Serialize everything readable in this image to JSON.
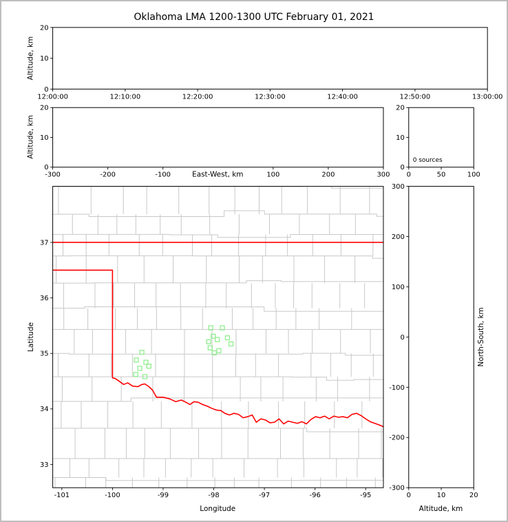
{
  "title": "Oklahoma LMA 1200-1300 UTC February 01, 2021",
  "colors": {
    "background": "#ffffff",
    "frame_border": "#bdbdbd",
    "axis": "#000000",
    "county_lines": "#c8c8c8",
    "state_boundary": "#ff0000",
    "station_marker": "#90ee90",
    "text": "#000000"
  },
  "chart_data": [
    {
      "id": "time_height",
      "type": "scatter",
      "ylabel": "Altitude, km",
      "ylim": [
        0,
        20
      ],
      "yticks": [
        0,
        10,
        20
      ],
      "xticks": [
        "12:00:00",
        "12:10:00",
        "12:20:00",
        "12:30:00",
        "12:40:00",
        "12:50:00",
        "13:00:00"
      ],
      "points": []
    },
    {
      "id": "eastwest_height",
      "type": "scatter",
      "xlabel": "East-West, km",
      "ylabel": "Altitude, km",
      "xlim": [
        -300,
        300
      ],
      "ylim": [
        0,
        20
      ],
      "xticks": [
        -300,
        -200,
        -100,
        100,
        200,
        300
      ],
      "yticks": [
        0,
        10,
        20
      ],
      "points": []
    },
    {
      "id": "altitude_histogram",
      "type": "line",
      "xlim": [
        0,
        100
      ],
      "ylim": [
        0,
        20
      ],
      "xticks": [
        0,
        50,
        100
      ],
      "yticks": [
        0,
        10,
        20
      ],
      "annotation": "0 sources",
      "points": []
    },
    {
      "id": "plan_view",
      "type": "scatter",
      "xlabel": "Longitude",
      "ylabel": "Latitude",
      "xlim": [
        -101.18,
        -94.65
      ],
      "ylim": [
        32.58,
        38.01
      ],
      "xticks": [
        -101,
        -100,
        -99,
        -98,
        -97,
        -96,
        -95
      ],
      "yticks": [
        33,
        34,
        35,
        36,
        37
      ],
      "stations": [
        [
          -98.06,
          35.46
        ],
        [
          -97.83,
          35.46
        ],
        [
          -98.01,
          35.31
        ],
        [
          -97.73,
          35.28
        ],
        [
          -98.1,
          35.21
        ],
        [
          -97.93,
          35.25
        ],
        [
          -98.07,
          35.1
        ],
        [
          -97.9,
          35.05
        ],
        [
          -97.99,
          35.01
        ],
        [
          -97.66,
          35.17
        ],
        [
          -99.42,
          35.02
        ],
        [
          -99.53,
          34.88
        ],
        [
          -99.34,
          34.84
        ],
        [
          -99.46,
          34.73
        ],
        [
          -99.28,
          34.77
        ],
        [
          -99.54,
          34.62
        ],
        [
          -99.36,
          34.58
        ]
      ],
      "state_boundary": {
        "segments": [
          [
            [
              -101.18,
              37.0
            ],
            [
              -94.65,
              37.0
            ]
          ],
          [
            [
              -101.18,
              36.5
            ],
            [
              -100.0,
              36.5
            ],
            [
              -100.0,
              34.56
            ],
            [
              -99.95,
              34.55
            ],
            [
              -99.87,
              34.5
            ],
            [
              -99.78,
              34.44
            ],
            [
              -99.7,
              34.47
            ],
            [
              -99.6,
              34.41
            ],
            [
              -99.5,
              34.4
            ],
            [
              -99.42,
              34.44
            ],
            [
              -99.36,
              34.45
            ],
            [
              -99.28,
              34.4
            ],
            [
              -99.21,
              34.34
            ],
            [
              -99.13,
              34.21
            ],
            [
              -99.0,
              34.21
            ],
            [
              -98.87,
              34.18
            ],
            [
              -98.75,
              34.13
            ],
            [
              -98.64,
              34.16
            ],
            [
              -98.55,
              34.12
            ],
            [
              -98.47,
              34.08
            ],
            [
              -98.39,
              34.13
            ],
            [
              -98.31,
              34.12
            ],
            [
              -98.22,
              34.08
            ],
            [
              -98.13,
              34.05
            ],
            [
              -98.04,
              34.01
            ],
            [
              -97.95,
              33.98
            ],
            [
              -97.86,
              33.97
            ],
            [
              -97.78,
              33.92
            ],
            [
              -97.69,
              33.89
            ],
            [
              -97.6,
              33.92
            ],
            [
              -97.51,
              33.9
            ],
            [
              -97.42,
              33.84
            ],
            [
              -97.33,
              33.86
            ],
            [
              -97.24,
              33.89
            ],
            [
              -97.16,
              33.76
            ],
            [
              -97.07,
              33.82
            ],
            [
              -96.98,
              33.8
            ],
            [
              -96.89,
              33.75
            ],
            [
              -96.8,
              33.76
            ],
            [
              -96.71,
              33.82
            ],
            [
              -96.62,
              33.73
            ],
            [
              -96.53,
              33.78
            ],
            [
              -96.44,
              33.76
            ],
            [
              -96.35,
              33.74
            ],
            [
              -96.26,
              33.77
            ],
            [
              -96.17,
              33.73
            ],
            [
              -96.08,
              33.81
            ],
            [
              -95.99,
              33.86
            ],
            [
              -95.9,
              33.84
            ],
            [
              -95.81,
              33.87
            ],
            [
              -95.72,
              33.82
            ],
            [
              -95.63,
              33.87
            ],
            [
              -95.54,
              33.85
            ],
            [
              -95.45,
              33.86
            ],
            [
              -95.36,
              33.84
            ],
            [
              -95.27,
              33.9
            ],
            [
              -95.18,
              33.92
            ],
            [
              -95.09,
              33.88
            ],
            [
              -95.0,
              33.82
            ],
            [
              -94.91,
              33.77
            ],
            [
              -94.82,
              33.74
            ],
            [
              -94.73,
              33.71
            ],
            [
              -94.65,
              33.68
            ]
          ]
        ]
      }
    },
    {
      "id": "northsouth_height",
      "type": "scatter",
      "xlabel": "Altitude, km",
      "ylabel_right": "North-South, km",
      "xlim": [
        0,
        20
      ],
      "ylim": [
        -300,
        300
      ],
      "xticks": [
        0,
        10,
        20
      ],
      "yticks": [
        300,
        200,
        100,
        0,
        -100,
        -200,
        -300
      ],
      "points": []
    }
  ]
}
